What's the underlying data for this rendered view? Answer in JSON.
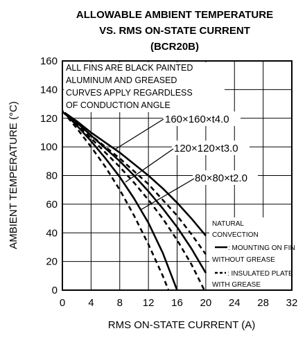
{
  "chart_data": {
    "type": "line",
    "title": [
      "ALLOWABLE AMBIENT TEMPERATURE",
      "VS. RMS ON-STATE CURRENT",
      "(BCR20B)"
    ],
    "xlabel": "RMS ON-STATE CURRENT  (A)",
    "ylabel": "AMBIENT TEMPERATURE  (°C)",
    "xlim": [
      0,
      32
    ],
    "ylim": [
      0,
      160
    ],
    "xticks": [
      "0",
      "4",
      "8",
      "12",
      "16",
      "20",
      "24",
      "28",
      "32"
    ],
    "yticks": [
      "0",
      "20",
      "40",
      "60",
      "80",
      "100",
      "120",
      "140",
      "160"
    ],
    "grid": true,
    "notes": [
      "ALL FINS ARE BLACK PAINTED",
      "ALUMINUM AND GREASED",
      "CURVES APPLY REGARDLESS",
      "OF CONDUCTION ANGLE"
    ],
    "curve_labels": [
      "160×160×t4.0",
      "120×120×t3.0",
      "80×80×t2.0"
    ],
    "legend": {
      "lines": [
        "NATURAL",
        "CONVECTION",
        ": MOUNTING ON FIN",
        "WITHOUT GREASE",
        ": INSULATED PLATE",
        "WITH GREASE"
      ]
    },
    "series": [
      {
        "fin": "160×160×t4.0",
        "style": "solid",
        "x": [
          0,
          2,
          4,
          6,
          8,
          10,
          12,
          14,
          16,
          18,
          20
        ],
        "y": [
          125,
          118,
          110,
          103,
          96,
          88,
          80,
          71,
          61,
          50,
          38
        ]
      },
      {
        "fin": "160×160×t4.0",
        "style": "dashed",
        "x": [
          0,
          2,
          4,
          6,
          8,
          10,
          12,
          14,
          16,
          18,
          20
        ],
        "y": [
          125,
          117,
          108,
          100,
          92,
          83,
          74,
          63,
          52,
          39,
          25
        ]
      },
      {
        "fin": "120×120×t3.0",
        "style": "solid",
        "x": [
          0,
          2,
          4,
          6,
          8,
          10,
          12,
          14,
          16,
          18,
          20
        ],
        "y": [
          125,
          117,
          108,
          99,
          90,
          80,
          69,
          57,
          44,
          29,
          12
        ]
      },
      {
        "fin": "120×120×t3.0",
        "style": "dashed",
        "x": [
          0,
          2,
          4,
          6,
          8,
          10,
          12,
          14,
          16,
          18,
          19.8
        ],
        "y": [
          125,
          116,
          106,
          96,
          86,
          75,
          63,
          50,
          35,
          18,
          0
        ]
      },
      {
        "fin": "80×80×t2.0",
        "style": "solid",
        "x": [
          0,
          2,
          4,
          6,
          8,
          10,
          12,
          14,
          16
        ],
        "y": [
          125,
          115,
          104,
          92,
          79,
          64,
          47,
          26,
          0
        ]
      },
      {
        "fin": "80×80×t2.0",
        "style": "dashed",
        "x": [
          0,
          2,
          4,
          6,
          8,
          10,
          12,
          14,
          14.8
        ],
        "y": [
          125,
          113,
          100,
          86,
          70,
          52,
          32,
          10,
          0
        ]
      }
    ]
  }
}
